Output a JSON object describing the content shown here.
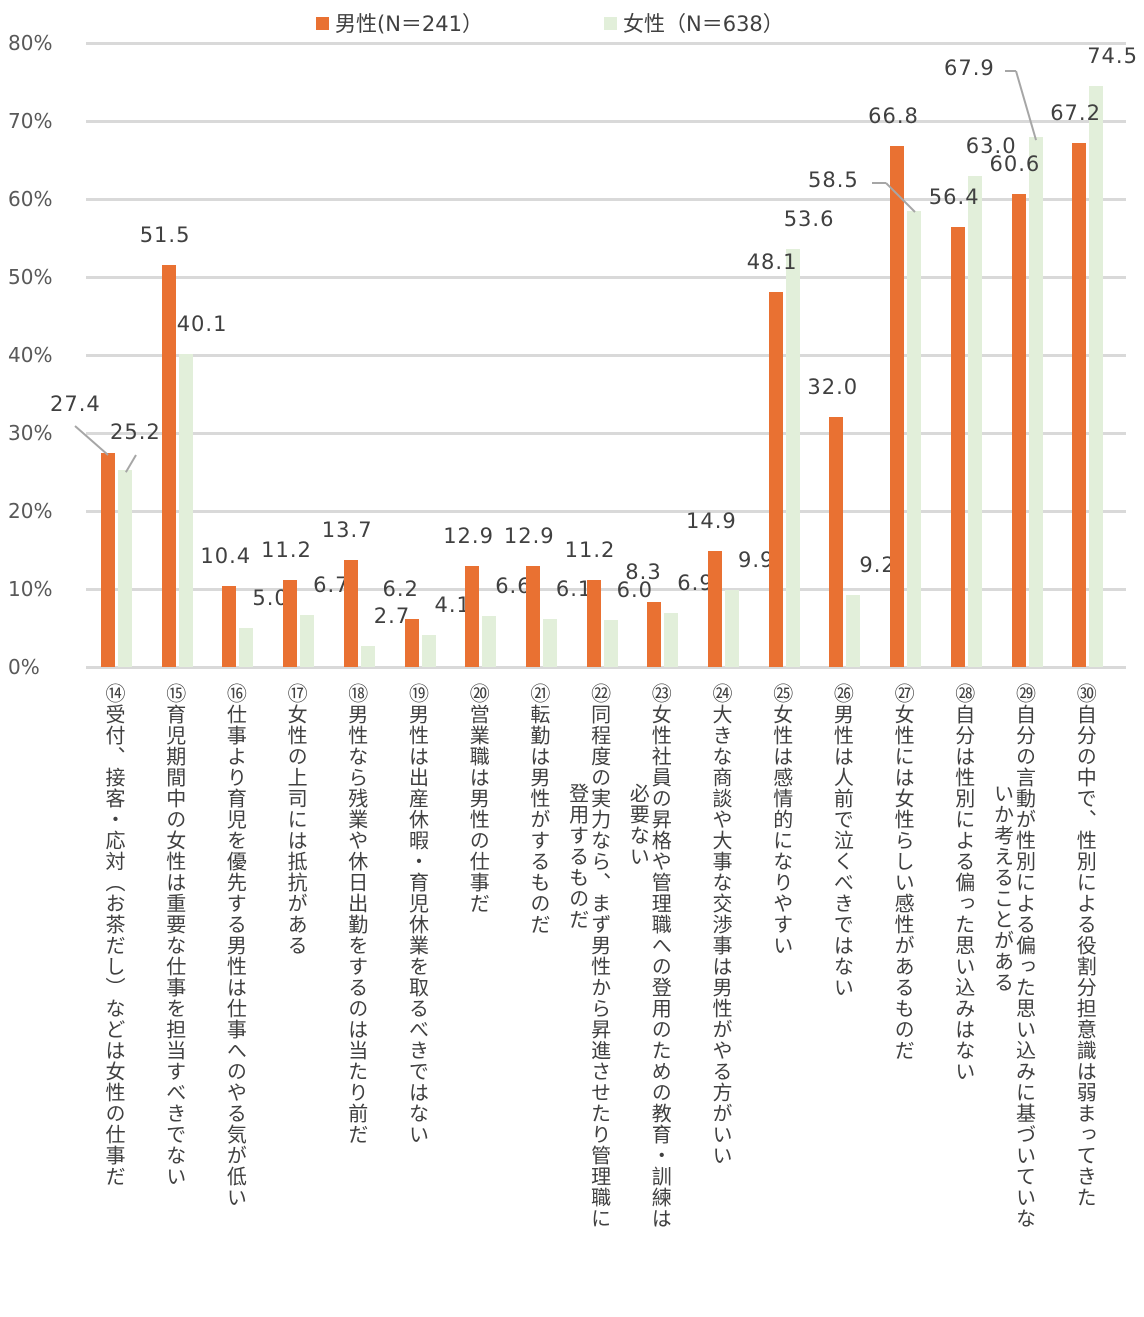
{
  "chart_data": {
    "type": "bar",
    "title": "",
    "xlabel": "",
    "ylabel": "",
    "ylim": [
      0,
      80
    ],
    "yticks": [
      "0%",
      "10%",
      "20%",
      "30%",
      "40%",
      "50%",
      "60%",
      "70%",
      "80%"
    ],
    "grid": true,
    "legend_position": "top",
    "categories": [
      "⑭受付、接客・応対（お茶だし）などは女性の仕事だ",
      "⑮育児期間中の女性は重要な仕事を担当すべきでない",
      "⑯仕事より育児を優先する男性は仕事へのやる気が低い",
      "⑰女性の上司には抵抗がある",
      "⑱男性なら残業や休日出勤をするのは当たり前だ",
      "⑲男性は出産休暇・育児休業を取るべきではない",
      "⑳営業職は男性の仕事だ",
      "㉑転勤は男性がするものだ",
      "㉒同程度の実力なら、まず男性から昇進させたり管理職に登用するものだ",
      "㉓女性社員の昇格や管理職への登用のための教育・訓練は必要ない",
      "㉔大きな商談や大事な交渉事は男性がやる方がいい",
      "㉕女性は感情的になりやすい",
      "㉖男性は人前で泣くべきではない",
      "㉗女性には女性らしい感性があるものだ",
      "㉘自分は性別による偏った思い込みはない",
      "㉙自分の言動が性別による偏った思い込みに基づいていないか考えることがある",
      "㉚自分の中で、性別による役割分担意識は弱まってきた"
    ],
    "series": [
      {
        "name": "男性(N＝241）",
        "color": "#e97132",
        "values": [
          27.4,
          51.5,
          10.4,
          11.2,
          13.7,
          6.2,
          12.9,
          12.9,
          11.2,
          8.3,
          14.9,
          48.1,
          32.0,
          66.8,
          56.4,
          60.6,
          67.2
        ]
      },
      {
        "name": "女性（N＝638）",
        "color": "#e2efda",
        "values": [
          25.2,
          40.1,
          5.0,
          6.7,
          2.7,
          4.1,
          6.6,
          6.1,
          6.0,
          6.9,
          9.9,
          53.6,
          9.2,
          58.5,
          63.0,
          67.9,
          74.5
        ]
      }
    ],
    "value_labels": {
      "male": [
        "27.4",
        "51.5",
        "10.4",
        "11.2",
        "13.7",
        "6.2",
        "12.9",
        "12.9",
        "11.2",
        "8.3",
        "14.9",
        "48.1",
        "32.0",
        "66.8",
        "56.4",
        "60.6",
        "67.2"
      ],
      "female": [
        "25.2",
        "40.1",
        "5.0",
        "6.7",
        "2.7",
        "4.1",
        "6.6",
        "6.1",
        "6.0",
        "6.9",
        "9.9",
        "53.6",
        "9.2",
        "58.5",
        "63.0",
        "67.9",
        "74.5"
      ]
    }
  },
  "legend": {
    "male_label": "男性(N＝241）",
    "female_label": "女性（N＝638）"
  },
  "category_lines": [
    [
      "⑭受付、接客・応対（お茶だし）などは女性の仕事だ"
    ],
    [
      "⑮育児期間中の女性は重要な仕事を担当すべきでない"
    ],
    [
      "⑯仕事より育児を優先する男性は仕事へのやる気が低い"
    ],
    [
      "⑰女性の上司には抵抗がある"
    ],
    [
      "⑱男性なら残業や休日出勤をするのは当たり前だ"
    ],
    [
      "⑲男性は出産休暇・育児休業を取るべきではない"
    ],
    [
      "⑳営業職は男性の仕事だ"
    ],
    [
      "㉑転勤は男性がするものだ"
    ],
    [
      "㉒同程度の実力なら、まず男性から昇進させたり管理職に",
      "登用するものだ"
    ],
    [
      "㉓女性社員の昇格や管理職への登用のための教育・訓練は",
      "必要ない"
    ],
    [
      "㉔大きな商談や大事な交渉事は男性がやる方がいい"
    ],
    [
      "㉕女性は感情的になりやすい"
    ],
    [
      "㉖男性は人前で泣くべきではない"
    ],
    [
      "㉗女性には女性らしい感性があるものだ"
    ],
    [
      "㉘自分は性別による偏った思い込みはない"
    ],
    [
      "㉙自分の言動が性別による偏った思い込みに基づいていな",
      "いか考えることがある"
    ],
    [
      "㉚自分の中で、性別による役割分担意識は弱まってきた"
    ]
  ]
}
